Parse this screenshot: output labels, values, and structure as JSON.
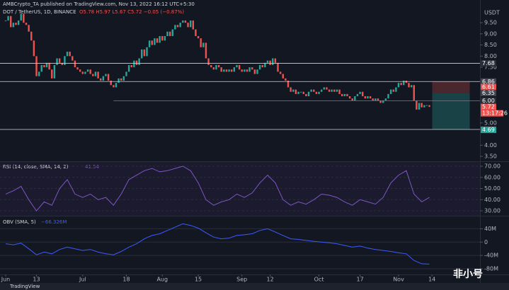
{
  "header": {
    "publisher": "AMBCrypto_TA published on TradingView.com, Nov 13, 2022 16:12 UTC+5:30",
    "symbol": "DOT / TetherUS, 1D, BINANCE",
    "ohlc": "O5.78 H5.97 L5.67 C5.72 −0.05 (−0.87%)"
  },
  "chart_data": [
    {
      "type": "candlestick",
      "currency": "USDT",
      "up_color": "#26a69a",
      "down_color": "#ef5350",
      "close": [
        9.6,
        9.8,
        9.3,
        9.5,
        9.4,
        9.6,
        9.9,
        9.5,
        9.4,
        9.1,
        8.7,
        8.0,
        7.1,
        7.3,
        7.6,
        7.5,
        7.7,
        7.4,
        7.0,
        7.6,
        7.9,
        7.7,
        7.6,
        8.0,
        8.2,
        8.0,
        7.8,
        7.5,
        7.4,
        7.3,
        7.2,
        7.3,
        7.4,
        7.2,
        7.1,
        7.3,
        7.0,
        6.9,
        7.1,
        7.2,
        6.9,
        6.7,
        6.6,
        6.8,
        7.0,
        6.9,
        7.1,
        7.3,
        7.6,
        7.5,
        7.8,
        7.6,
        7.9,
        8.3,
        8.0,
        8.4,
        8.7,
        8.5,
        8.8,
        8.6,
        8.9,
        8.7,
        8.9,
        9.1,
        8.9,
        9.2,
        9.4,
        9.3,
        9.5,
        9.6,
        9.5,
        9.3,
        9.6,
        9.2,
        8.9,
        8.8,
        8.4,
        8.6,
        7.9,
        7.6,
        7.5,
        7.4,
        7.6,
        7.5,
        7.3,
        7.4,
        7.3,
        7.4,
        7.3,
        7.5,
        7.6,
        7.4,
        7.3,
        7.4,
        7.3,
        7.5,
        7.4,
        7.2,
        7.4,
        7.6,
        7.5,
        7.7,
        7.8,
        7.6,
        7.9,
        7.7,
        7.3,
        7.2,
        7.0,
        6.9,
        6.6,
        6.4,
        6.5,
        6.3,
        6.4,
        6.4,
        6.3,
        6.2,
        6.4,
        6.5,
        6.4,
        6.3,
        6.4,
        6.5,
        6.6,
        6.5,
        6.4,
        6.5,
        6.4,
        6.5,
        6.3,
        6.2,
        6.3,
        6.2,
        6.1,
        6.0,
        6.2,
        6.3,
        6.4,
        6.2,
        6.1,
        6.2,
        6.1,
        6.0,
        6.1,
        6.0,
        5.9,
        6.0,
        6.1,
        6.3,
        6.5,
        6.4,
        6.6,
        6.8,
        6.7,
        6.9,
        6.8,
        6.6,
        6.7,
        6.0,
        5.6,
        5.9,
        5.7,
        5.8,
        5.8,
        5.72
      ],
      "xlim": [
        -2.2,
        184.7
      ],
      "xticks": [
        {
          "value": 0,
          "label": "Jun"
        },
        {
          "value": 12,
          "label": "13"
        },
        {
          "value": 30,
          "label": "Jul"
        },
        {
          "value": 47,
          "label": "18"
        },
        {
          "value": 61,
          "label": "Aug"
        },
        {
          "value": 75,
          "label": "15"
        },
        {
          "value": 92,
          "label": "Sep"
        },
        {
          "value": 103,
          "label": "12"
        },
        {
          "value": 122,
          "label": "Oct"
        },
        {
          "value": 138,
          "label": "17"
        },
        {
          "value": 153,
          "label": "Nov"
        },
        {
          "value": 166,
          "label": "14"
        }
      ],
      "ylim": [
        3.28,
        10.52
      ],
      "yticks": [
        {
          "value": 9.5,
          "label": "9.50"
        },
        {
          "value": 9,
          "label": "9.00"
        },
        {
          "value": 8.5,
          "label": "8.50"
        },
        {
          "value": 8,
          "label": "8.00"
        },
        {
          "value": 7.5,
          "label": "7.50"
        },
        {
          "value": 5,
          "label": "5.00"
        },
        {
          "value": 4,
          "label": "4.00"
        },
        {
          "value": 3.5,
          "label": "3.50"
        }
      ],
      "levels": [
        {
          "value": 7.68,
          "color": "#2a2e39"
        },
        {
          "value": 6.86,
          "color": "#434651"
        },
        {
          "value": 6.61,
          "color": "#ef5350"
        },
        {
          "value": 6.35,
          "color": "#434651"
        },
        {
          "value": 6,
          "label": "6.00",
          "color": "#2a2e39"
        },
        {
          "value": 5.72,
          "color": "#ef5350"
        },
        {
          "value": 4.71,
          "color": "#2a2e39"
        },
        {
          "value": 4.69,
          "color": "#26a69a"
        }
      ],
      "countdown": "13:17:26"
    },
    {
      "type": "line",
      "title": "RSI (14, close, SMA, 14, 2)",
      "last_value": "41.54",
      "color": "#7e57c2",
      "x": [
        0,
        3,
        6,
        9,
        12,
        15,
        18,
        21,
        24,
        27,
        30,
        33,
        36,
        39,
        42,
        45,
        48,
        51,
        54,
        57,
        60,
        63,
        66,
        69,
        72,
        75,
        78,
        81,
        84,
        87,
        90,
        93,
        96,
        99,
        102,
        105,
        108,
        111,
        114,
        117,
        120,
        123,
        126,
        129,
        132,
        135,
        138,
        141,
        144,
        147,
        150,
        153,
        156,
        159,
        162,
        165
      ],
      "values": [
        45,
        48,
        52,
        40,
        30,
        38,
        35,
        50,
        58,
        45,
        42,
        45,
        40,
        42,
        35,
        45,
        58,
        62,
        66,
        68,
        65,
        66,
        68,
        70,
        66,
        55,
        40,
        35,
        38,
        40,
        45,
        42,
        46,
        55,
        62,
        55,
        40,
        35,
        38,
        36,
        40,
        45,
        44,
        42,
        38,
        35,
        40,
        38,
        36,
        42,
        55,
        62,
        66,
        45,
        38,
        42
      ],
      "ylim": [
        25.6,
        73.8
      ],
      "yticks": [
        {
          "value": 70,
          "label": "70.00"
        },
        {
          "value": 60,
          "label": "60.00"
        },
        {
          "value": 50,
          "label": "50.00"
        },
        {
          "value": 40,
          "label": "40.00"
        },
        {
          "value": 30,
          "label": "30.00"
        }
      ]
    },
    {
      "type": "line",
      "title": "OBV (SMA, 5)",
      "last_value": "−66.326M",
      "color": "#3d5afe",
      "x": [
        0,
        3,
        6,
        9,
        12,
        15,
        18,
        21,
        24,
        27,
        30,
        33,
        36,
        39,
        42,
        45,
        48,
        51,
        54,
        57,
        60,
        63,
        66,
        69,
        72,
        75,
        78,
        81,
        84,
        87,
        90,
        93,
        96,
        99,
        102,
        105,
        108,
        111,
        114,
        117,
        120,
        123,
        126,
        129,
        132,
        135,
        138,
        141,
        144,
        147,
        150,
        153,
        156,
        159,
        162,
        165
      ],
      "values": [
        -5,
        -8,
        -3,
        -20,
        -38,
        -30,
        -35,
        -22,
        -15,
        -20,
        -25,
        -22,
        -30,
        -35,
        -38,
        -28,
        -15,
        -5,
        10,
        20,
        25,
        35,
        45,
        55,
        50,
        42,
        28,
        15,
        10,
        12,
        20,
        22,
        25,
        35,
        40,
        30,
        20,
        10,
        8,
        5,
        2,
        0,
        -2,
        -5,
        -10,
        -15,
        -12,
        -18,
        -22,
        -25,
        -28,
        -32,
        -35,
        -55,
        -65,
        -66
      ],
      "ylim": [
        -97,
        77
      ],
      "yticks": [
        {
          "value": 40,
          "label": "40M"
        },
        0,
        {
          "value": -40,
          "label": "-40M"
        },
        {
          "value": -80,
          "label": "-80M"
        }
      ]
    }
  ],
  "footer": {
    "brand": "TradingView",
    "watermark": "非小号"
  }
}
